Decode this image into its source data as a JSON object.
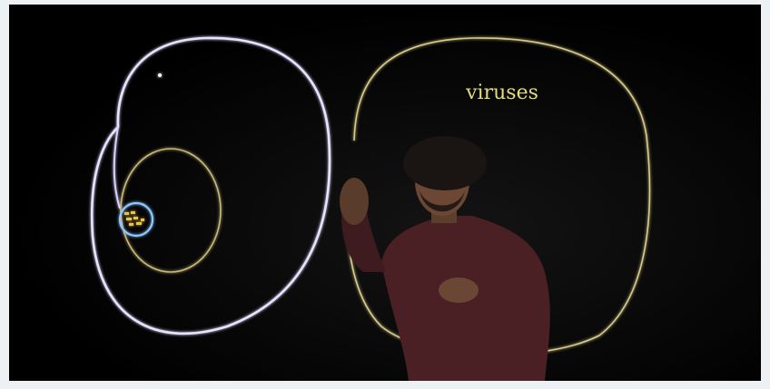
{
  "image": {
    "annotation": "viruses"
  }
}
